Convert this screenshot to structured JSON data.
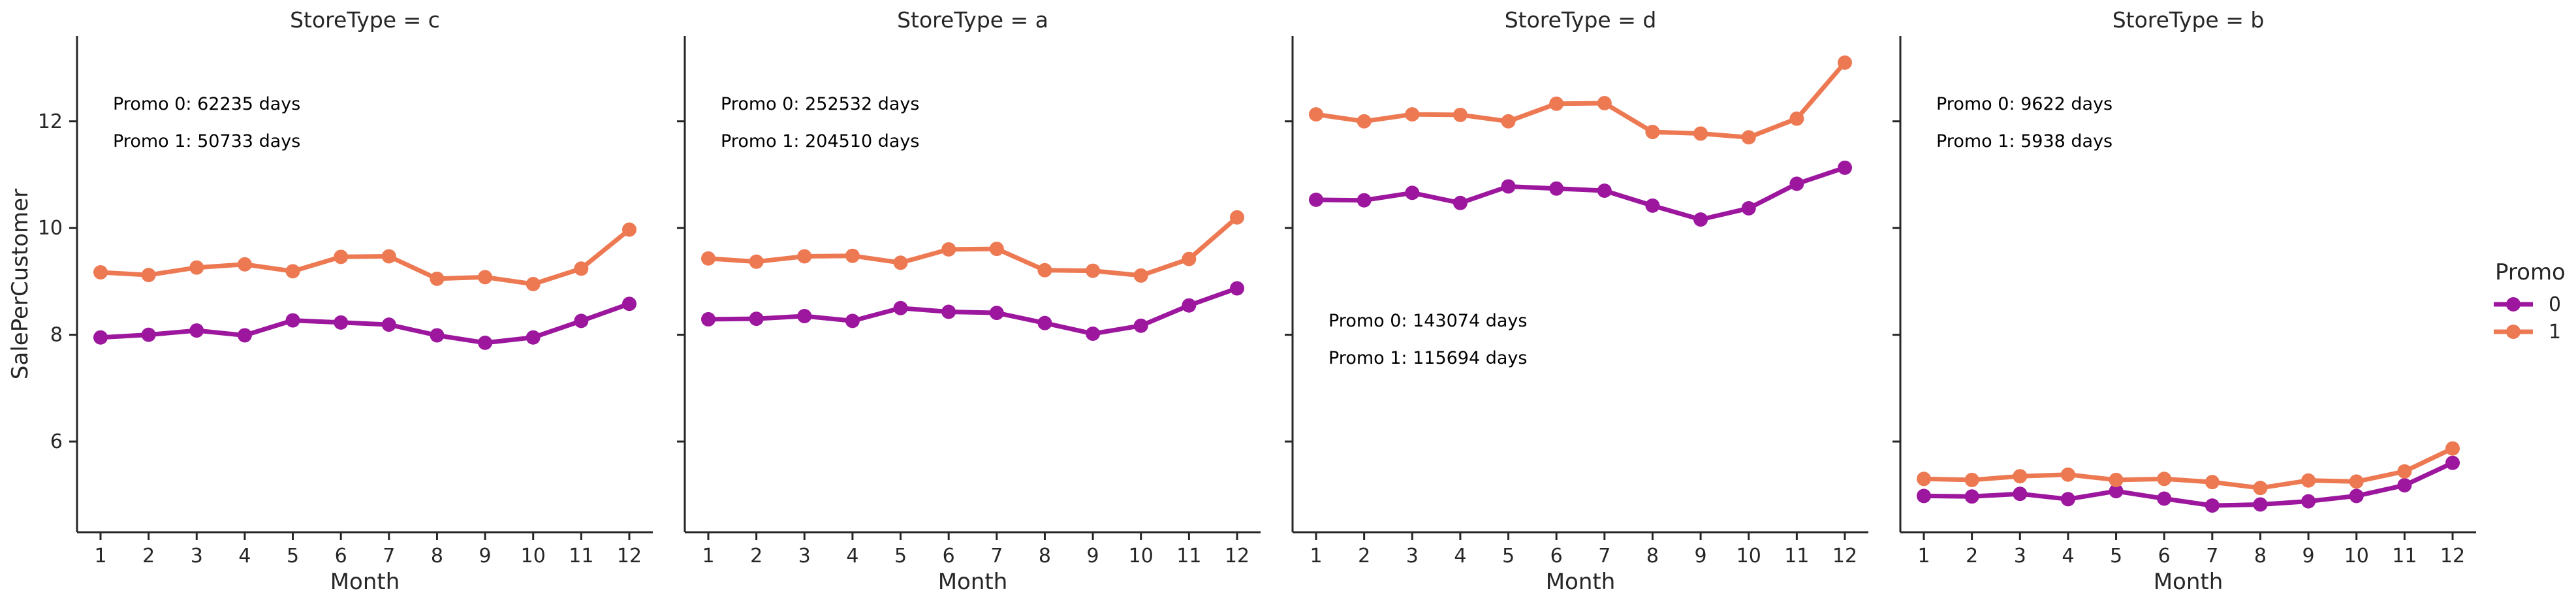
{
  "chart_data": {
    "type": "line",
    "facet_by": "StoreType",
    "ylabel": "SalePerCustomer",
    "xlabel": "Month",
    "x": [
      1,
      2,
      3,
      4,
      5,
      6,
      7,
      8,
      9,
      10,
      11,
      12
    ],
    "ylim": [
      4.3,
      13.6
    ],
    "yticks": [
      6,
      8,
      10,
      12
    ],
    "grid": false,
    "legend": {
      "title": "Promo",
      "placement": "right",
      "entries": [
        {
          "label": "0",
          "color": "#9c179e"
        },
        {
          "label": "1",
          "color": "#ed7953"
        }
      ]
    },
    "panels": [
      {
        "title": "StoreType = c",
        "annotations": [
          "Promo 0: 62235 days",
          "Promo 1: 50733 days"
        ],
        "annotation_position": "top",
        "series": [
          {
            "promo": "0",
            "values": [
              7.95,
              8.0,
              8.08,
              7.99,
              8.27,
              8.23,
              8.19,
              7.99,
              7.85,
              7.95,
              8.26,
              8.58
            ]
          },
          {
            "promo": "1",
            "values": [
              9.17,
              9.12,
              9.26,
              9.32,
              9.19,
              9.46,
              9.47,
              9.05,
              9.08,
              8.95,
              9.24,
              9.97
            ]
          }
        ]
      },
      {
        "title": "StoreType = a",
        "annotations": [
          "Promo 0: 252532 days",
          "Promo 1: 204510 days"
        ],
        "annotation_position": "top",
        "series": [
          {
            "promo": "0",
            "values": [
              8.29,
              8.3,
              8.35,
              8.26,
              8.5,
              8.43,
              8.41,
              8.22,
              8.02,
              8.17,
              8.55,
              8.87
            ]
          },
          {
            "promo": "1",
            "values": [
              9.43,
              9.37,
              9.47,
              9.48,
              9.35,
              9.6,
              9.61,
              9.21,
              9.2,
              9.11,
              9.42,
              10.2
            ]
          }
        ]
      },
      {
        "title": "StoreType = d",
        "annotations": [
          "Promo 0: 143074 days",
          "Promo 1: 115694 days"
        ],
        "annotation_position": "middle",
        "series": [
          {
            "promo": "0",
            "values": [
              10.53,
              10.52,
              10.66,
              10.47,
              10.78,
              10.74,
              10.7,
              10.42,
              10.16,
              10.37,
              10.83,
              11.13
            ]
          },
          {
            "promo": "1",
            "values": [
              12.13,
              12.0,
              12.13,
              12.12,
              12.0,
              12.33,
              12.34,
              11.8,
              11.77,
              11.7,
              12.05,
              13.1
            ]
          }
        ]
      },
      {
        "title": "StoreType = b",
        "annotations": [
          "Promo 0: 9622 days",
          "Promo 1: 5938 days"
        ],
        "annotation_position": "top",
        "series": [
          {
            "promo": "0",
            "values": [
              4.98,
              4.97,
              5.02,
              4.92,
              5.07,
              4.93,
              4.8,
              4.82,
              4.88,
              4.98,
              5.18,
              5.6
            ]
          },
          {
            "promo": "1",
            "values": [
              5.3,
              5.28,
              5.35,
              5.38,
              5.28,
              5.3,
              5.24,
              5.13,
              5.27,
              5.25,
              5.44,
              5.87
            ]
          }
        ]
      }
    ]
  }
}
